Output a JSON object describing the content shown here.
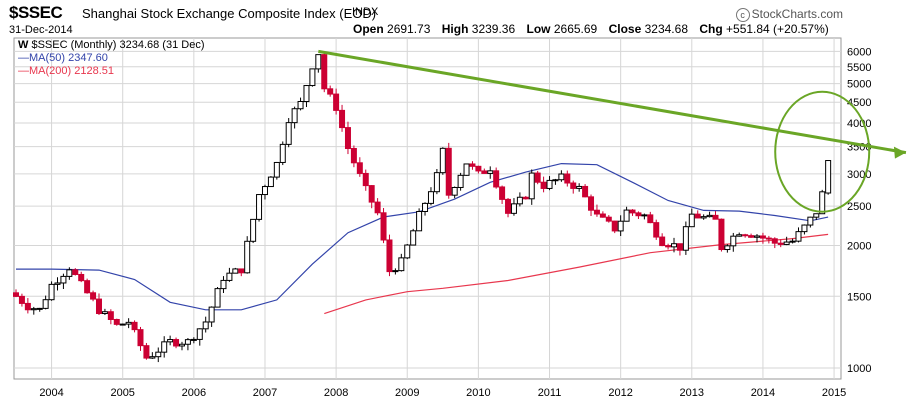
{
  "header": {
    "symbol": "$SSEC",
    "description": "Shanghai Stock Exchange Composite Index (EOD)",
    "exchange": "INDX",
    "date": "31-Dec-2014",
    "brand": "StockCharts.com",
    "brand_icon": "copyright-icon",
    "ohlc": [
      {
        "label": "Open",
        "value": "2691.73"
      },
      {
        "label": "High",
        "value": "3239.36"
      },
      {
        "label": "Low",
        "value": "2665.69"
      },
      {
        "label": "Close",
        "value": "3234.68"
      },
      {
        "label": "Chg",
        "value": "+551.84 (+20.57%)"
      }
    ]
  },
  "legend": {
    "price": "$SSEC (Monthly) 3234.68 (31 Dec)",
    "price_marker": "W",
    "ma50": "MA(50) 2347.60",
    "ma200": "MA(200) 2128.51"
  },
  "colors": {
    "up_candle": "#000000",
    "down_candle": "#cc0033",
    "ma50": "#3344aa",
    "ma200": "#e8374e",
    "trendline": "#6aa626",
    "grid": "#d6d6d6"
  },
  "chart_data": {
    "type": "candlestick",
    "interval": "monthly",
    "y_scale": "log",
    "ylim": [
      950,
      6400
    ],
    "xlim": [
      "2003-07",
      "2015-02"
    ],
    "y_ticks": [
      1000,
      1500,
      2000,
      2500,
      3000,
      3500,
      4000,
      4500,
      5000,
      5500,
      6000
    ],
    "y_tick_labels": [
      "1000",
      "1500",
      "2000",
      "2500",
      "3000",
      "3500",
      "4000",
      "4500",
      "5000",
      "5500",
      "6000"
    ],
    "x_tick_labels": [
      "2004",
      "2005",
      "2006",
      "2007",
      "2008",
      "2009",
      "2010",
      "2011",
      "2012",
      "2013",
      "2014",
      "2015"
    ],
    "grid": true,
    "legend_position": "top-left",
    "close_path": [
      [
        "2003-07",
        1500
      ],
      [
        "2003-09",
        1420
      ],
      [
        "2003-11",
        1390
      ],
      [
        "2004-01",
        1600
      ],
      [
        "2004-04",
        1770
      ],
      [
        "2004-06",
        1600
      ],
      [
        "2004-09",
        1390
      ],
      [
        "2004-12",
        1270
      ],
      [
        "2005-02",
        1300
      ],
      [
        "2005-05",
        1060
      ],
      [
        "2005-06",
        1080
      ],
      [
        "2005-09",
        1160
      ],
      [
        "2005-12",
        1160
      ],
      [
        "2006-03",
        1300
      ],
      [
        "2006-06",
        1670
      ],
      [
        "2006-09",
        1750
      ],
      [
        "2006-12",
        2670
      ],
      [
        "2007-03",
        3180
      ],
      [
        "2007-05",
        4110
      ],
      [
        "2007-07",
        4470
      ],
      [
        "2007-09",
        5550
      ],
      [
        "2007-10",
        5950
      ],
      [
        "2007-11",
        4870
      ],
      [
        "2008-01",
        4380
      ],
      [
        "2008-03",
        3470
      ],
      [
        "2008-06",
        2740
      ],
      [
        "2008-08",
        2400
      ],
      [
        "2008-10",
        1730
      ],
      [
        "2008-12",
        1820
      ],
      [
        "2009-03",
        2370
      ],
      [
        "2009-06",
        2960
      ],
      [
        "2009-07",
        3410
      ],
      [
        "2009-08",
        2670
      ],
      [
        "2009-11",
        3200
      ],
      [
        "2010-01",
        2990
      ],
      [
        "2010-03",
        3110
      ],
      [
        "2010-06",
        2400
      ],
      [
        "2010-09",
        2660
      ],
      [
        "2010-10",
        2980
      ],
      [
        "2010-12",
        2810
      ],
      [
        "2011-03",
        2930
      ],
      [
        "2011-06",
        2760
      ],
      [
        "2011-09",
        2360
      ],
      [
        "2011-12",
        2200
      ],
      [
        "2012-02",
        2430
      ],
      [
        "2012-05",
        2370
      ],
      [
        "2012-08",
        2050
      ],
      [
        "2012-11",
        1980
      ],
      [
        "2013-01",
        2380
      ],
      [
        "2013-05",
        2300
      ],
      [
        "2013-06",
        1980
      ],
      [
        "2013-09",
        2170
      ],
      [
        "2013-12",
        2120
      ],
      [
        "2014-03",
        2030
      ],
      [
        "2014-06",
        2050
      ],
      [
        "2014-08",
        2220
      ],
      [
        "2014-10",
        2420
      ],
      [
        "2014-11",
        2680
      ],
      [
        "2014-12",
        3235
      ]
    ],
    "ma50": [
      [
        "2003-07",
        1750
      ],
      [
        "2004-01",
        1750
      ],
      [
        "2004-09",
        1740
      ],
      [
        "2005-03",
        1650
      ],
      [
        "2005-09",
        1450
      ],
      [
        "2006-03",
        1390
      ],
      [
        "2006-09",
        1390
      ],
      [
        "2007-03",
        1470
      ],
      [
        "2007-09",
        1800
      ],
      [
        "2008-03",
        2150
      ],
      [
        "2008-09",
        2350
      ],
      [
        "2009-03",
        2420
      ],
      [
        "2009-09",
        2600
      ],
      [
        "2010-03",
        2860
      ],
      [
        "2010-09",
        3030
      ],
      [
        "2011-03",
        3180
      ],
      [
        "2011-09",
        3160
      ],
      [
        "2012-03",
        2860
      ],
      [
        "2012-09",
        2580
      ],
      [
        "2013-03",
        2440
      ],
      [
        "2013-09",
        2430
      ],
      [
        "2014-03",
        2370
      ],
      [
        "2014-09",
        2300
      ],
      [
        "2014-12",
        2348
      ]
    ],
    "ma200": [
      [
        "2007-11",
        1360
      ],
      [
        "2008-06",
        1470
      ],
      [
        "2009-01",
        1540
      ],
      [
        "2009-07",
        1570
      ],
      [
        "2010-06",
        1640
      ],
      [
        "2011-06",
        1770
      ],
      [
        "2012-06",
        1920
      ],
      [
        "2013-06",
        2010
      ],
      [
        "2014-06",
        2080
      ],
      [
        "2014-12",
        2129
      ]
    ],
    "annotations": [
      {
        "type": "trendline",
        "from": [
          "2007-10",
          6000
        ],
        "to": [
          "2015-03",
          3500
        ]
      },
      {
        "type": "circle",
        "center": [
          "2014-11",
          3400
        ]
      }
    ]
  }
}
